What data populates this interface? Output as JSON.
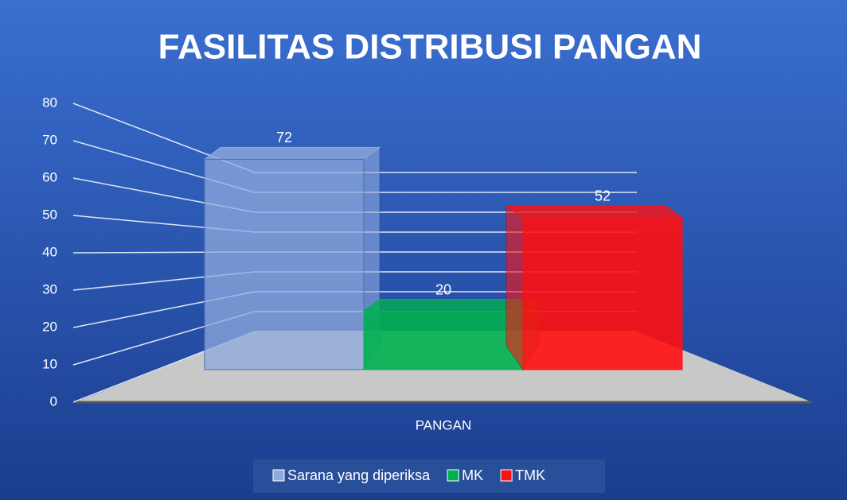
{
  "chart_data": {
    "type": "bar",
    "title": "FASILITAS DISTRIBUSI PANGAN",
    "categories": [
      "PANGAN"
    ],
    "series": [
      {
        "name": "Sarana yang diperiksa",
        "color": "#8faadc",
        "values": [
          72
        ]
      },
      {
        "name": "MK",
        "color": "#00b050",
        "values": [
          20
        ]
      },
      {
        "name": "TMK",
        "color": "#ff1010",
        "values": [
          52
        ]
      }
    ],
    "ylim": [
      0,
      80
    ],
    "yticks": [
      0,
      10,
      20,
      30,
      40,
      50,
      60,
      70,
      80
    ],
    "grid": true,
    "legend": "bottom"
  }
}
